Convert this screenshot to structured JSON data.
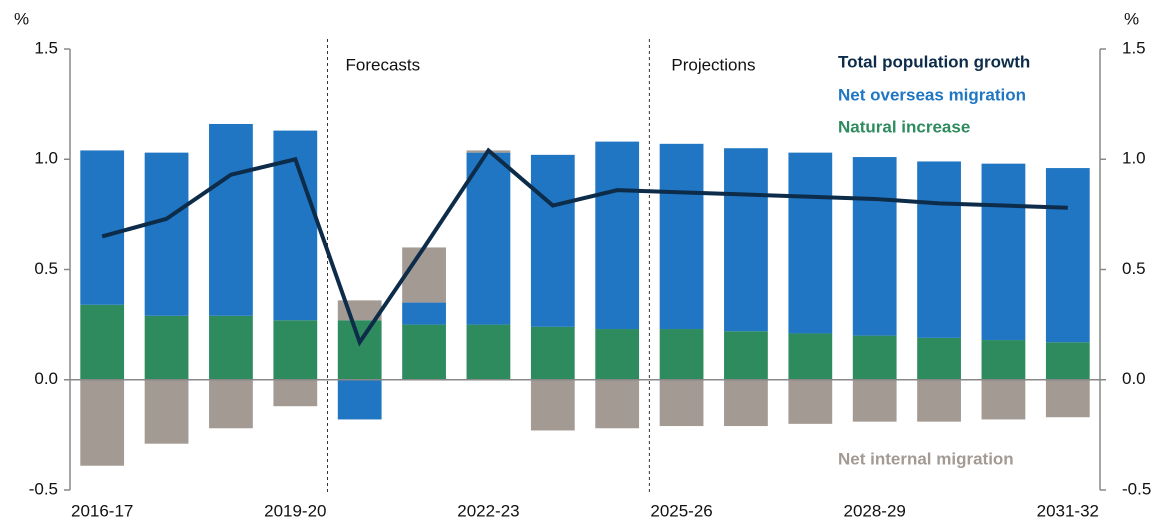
{
  "chart_data": {
    "type": "bar",
    "y_label": "%",
    "y2_label": "%",
    "annotations": [
      "Forecasts",
      "Projections"
    ],
    "categories": [
      "2016-17",
      null,
      null,
      "2019-20",
      null,
      null,
      "2022-23",
      null,
      null,
      "2025-26",
      null,
      null,
      "2028-29",
      null,
      null,
      "2031-32"
    ],
    "series": [
      {
        "name": "Natural increase",
        "color": "#2e8b5e",
        "values": [
          0.34,
          0.29,
          0.29,
          0.27,
          0.27,
          0.25,
          0.25,
          0.24,
          0.23,
          0.23,
          0.22,
          0.21,
          0.2,
          0.19,
          0.18,
          0.17
        ]
      },
      {
        "name": "Net overseas migration",
        "color": "#2076c2",
        "values": [
          0.7,
          0.74,
          0.87,
          0.86,
          -0.18,
          0.1,
          0.78,
          0.78,
          0.85,
          0.84,
          0.83,
          0.82,
          0.81,
          0.8,
          0.8,
          0.79
        ]
      },
      {
        "name": "Net internal migration",
        "color": "#a39a94",
        "values": [
          -0.39,
          -0.29,
          -0.22,
          -0.12,
          0.09,
          0.25,
          0.01,
          -0.23,
          -0.22,
          -0.21,
          -0.21,
          -0.2,
          -0.19,
          -0.19,
          -0.18,
          -0.17
        ]
      },
      {
        "name": "Total population growth",
        "color": "#0d2c4a",
        "type": "line",
        "values": [
          0.65,
          0.73,
          0.93,
          1.0,
          0.17,
          0.6,
          1.04,
          0.79,
          0.86,
          0.85,
          0.84,
          0.83,
          0.82,
          0.8,
          0.79,
          0.78
        ]
      }
    ],
    "ylim": [
      -0.5,
      1.5
    ],
    "yticks": [
      {
        "value": -0.5,
        "label": "-0.5"
      },
      {
        "value": 0,
        "label": "0.0"
      },
      {
        "value": 0.5,
        "label": "0.5"
      },
      {
        "value": 1,
        "label": "1.0"
      },
      {
        "value": 1.5,
        "label": "1.5"
      }
    ],
    "y2lim": [
      -0.5,
      1.5
    ],
    "y2ticks": [
      {
        "value": -0.5,
        "label": "-0.5"
      },
      {
        "value": 0,
        "label": "0.0"
      },
      {
        "value": 0.5,
        "label": "0.5"
      },
      {
        "value": 1,
        "label": "1.0"
      },
      {
        "value": 1.5,
        "label": "1.5"
      }
    ]
  }
}
